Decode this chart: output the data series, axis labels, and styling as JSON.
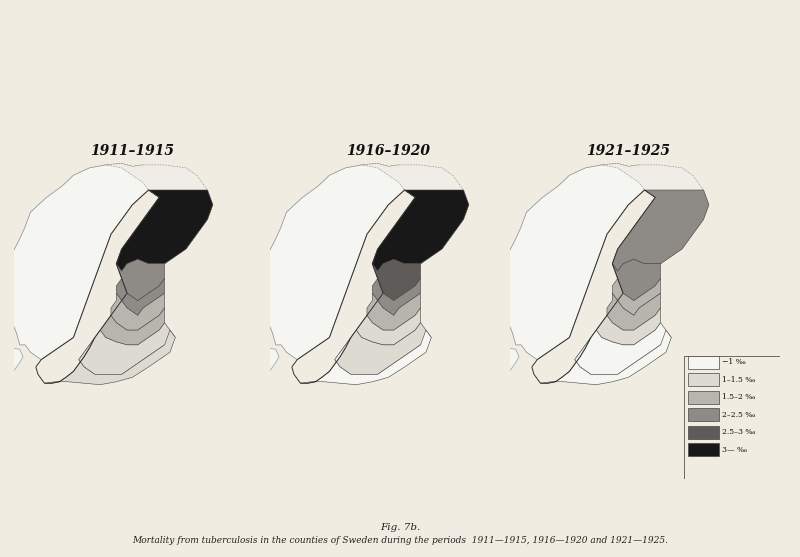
{
  "title_1": "1911–1915",
  "title_2": "1916–1920",
  "title_3": "1921–1925",
  "caption_line1": "Fig. 7b.",
  "caption_line2": "Mortality from tuberculosis in the counties of Sweden during the periods  1911—1915, 1916—1920 and 1921—1925.",
  "bg_color": "#f0ece2",
  "panel_bg": "#f0ece2",
  "map_bg": "#f2f0ea",
  "legend_labels": [
    "−1 ‰",
    "1–1.5 ‰",
    "1.5–2 ‰",
    "2–2.5 ‰",
    "2.5–3 ‰",
    "3— ‰"
  ],
  "legend_colors": [
    "#f5f5f2",
    "#dddad2",
    "#b8b5ae",
    "#8e8b86",
    "#5e5b58",
    "#181818"
  ],
  "title_fontsize": 10,
  "caption_fontsize": 7
}
